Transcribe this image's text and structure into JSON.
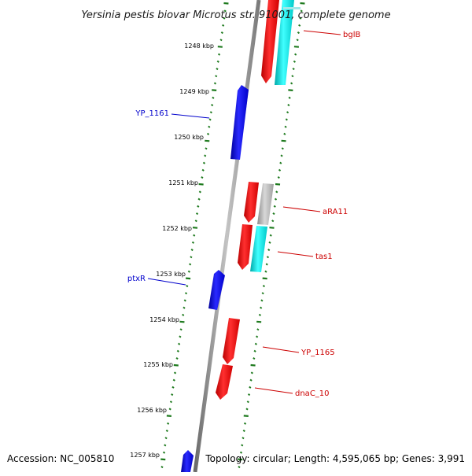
{
  "title": "Yersinia pestis biovar Microtus str. 91001, complete genome",
  "footer": {
    "accession": "Accession: NC_005810",
    "summary": "Topology: circular; Length: 4,595,065 bp; Genes: 3,991"
  },
  "ruler": {
    "ticks": [
      "1248 kbp",
      "1249 kbp",
      "1250 kbp",
      "1251 kbp",
      "1252 kbp",
      "1253 kbp",
      "1254 kbp",
      "1255 kbp",
      "1256 kbp",
      "1257 kbp"
    ]
  },
  "gene_labels": [
    {
      "id": "bglB",
      "text": "bglB",
      "strand": "forward"
    },
    {
      "id": "YP_1161",
      "text": "YP_1161",
      "strand": "reverse"
    },
    {
      "id": "aRA11",
      "text": "aRA11",
      "strand": "forward"
    },
    {
      "id": "tas1",
      "text": "tas1",
      "strand": "forward"
    },
    {
      "id": "ptxR",
      "text": "ptxR",
      "strand": "reverse"
    },
    {
      "id": "YP_1165",
      "text": "YP_1165",
      "strand": "forward"
    },
    {
      "id": "dnaC_10",
      "text": "dnaC_10",
      "strand": "forward"
    }
  ],
  "colors": {
    "forward_gene": "#ff0000",
    "reverse_gene": "#0000ff",
    "rna_feature": "#00e5e5",
    "other_feature": "#b0b0b0",
    "backbone": "#8a8a8a",
    "tick": "#1e7a1e",
    "forward_label": "#cc0000",
    "reverse_label": "#0000cc"
  }
}
